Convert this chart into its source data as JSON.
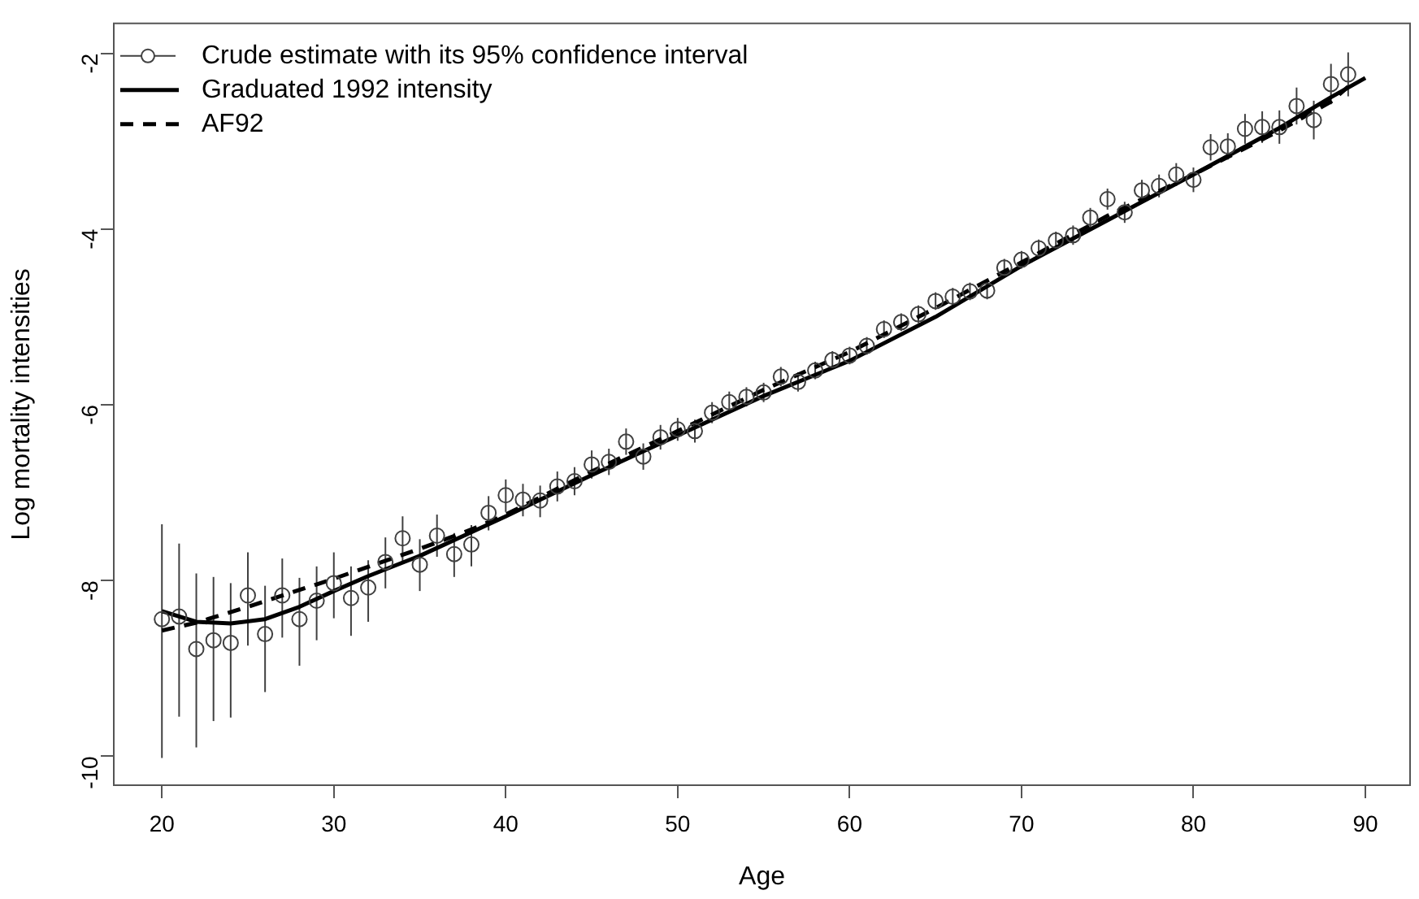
{
  "chart_data": {
    "type": "line",
    "xlabel": "Age",
    "ylabel": "Log mortality intensities",
    "xlim": [
      17.2,
      92.6
    ],
    "ylim": [
      -10.33,
      -1.66
    ],
    "xticks": [
      20,
      30,
      40,
      50,
      60,
      70,
      80,
      90
    ],
    "yticks": [
      -10,
      -8,
      -6,
      -4,
      -2
    ],
    "grid": false,
    "legend": "top left",
    "series": [
      {
        "name": "Crude estimate with its 95% confidence interval",
        "type": "scatter",
        "marker": "circle",
        "color": "#404040",
        "x": [
          20,
          21,
          22,
          23,
          24,
          25,
          26,
          27,
          28,
          29,
          30,
          31,
          32,
          33,
          34,
          35,
          36,
          37,
          38,
          39,
          40,
          41,
          42,
          43,
          44,
          45,
          46,
          47,
          48,
          49,
          50,
          51,
          52,
          53,
          54,
          55,
          56,
          57,
          58,
          59,
          60,
          61,
          62,
          63,
          64,
          65,
          66,
          67,
          68,
          69,
          70,
          71,
          72,
          73,
          74,
          75,
          76,
          77,
          78,
          79,
          80,
          81,
          82,
          83,
          84,
          85,
          86,
          87,
          88,
          89
        ],
        "values": [
          -8.44,
          -8.41,
          -8.78,
          -8.68,
          -8.71,
          -8.17,
          -8.61,
          -8.17,
          -8.44,
          -8.23,
          -8.03,
          -8.2,
          -8.08,
          -7.79,
          -7.52,
          -7.82,
          -7.49,
          -7.7,
          -7.59,
          -7.23,
          -7.03,
          -7.08,
          -7.09,
          -6.93,
          -6.87,
          -6.68,
          -6.65,
          -6.42,
          -6.59,
          -6.37,
          -6.28,
          -6.3,
          -6.09,
          -5.97,
          -5.91,
          -5.86,
          -5.68,
          -5.74,
          -5.61,
          -5.49,
          -5.44,
          -5.33,
          -5.14,
          -5.06,
          -4.97,
          -4.82,
          -4.77,
          -4.71,
          -4.7,
          -4.44,
          -4.35,
          -4.22,
          -4.13,
          -4.07,
          -3.87,
          -3.66,
          -3.81,
          -3.56,
          -3.51,
          -3.38,
          -3.44,
          -3.07,
          -3.06,
          -2.86,
          -2.84,
          -2.84,
          -2.6,
          -2.76,
          -2.35,
          -2.24
        ],
        "errors": [
          [
            -10.02,
            -7.36
          ],
          [
            -9.55,
            -7.58
          ],
          [
            -9.9,
            -7.92
          ],
          [
            -9.6,
            -7.96
          ],
          [
            -9.56,
            -8.03
          ],
          [
            -8.74,
            -7.68
          ],
          [
            -9.27,
            -8.06
          ],
          [
            -8.65,
            -7.75
          ],
          [
            -8.97,
            -7.97
          ],
          [
            -8.68,
            -7.84
          ],
          [
            -8.43,
            -7.68
          ],
          [
            -8.63,
            -7.84
          ],
          [
            -8.47,
            -7.77
          ],
          [
            -8.09,
            -7.51
          ],
          [
            -7.79,
            -7.27
          ],
          [
            -8.12,
            -7.53
          ],
          [
            -7.73,
            -7.25
          ],
          [
            -7.96,
            -7.46
          ],
          [
            -7.84,
            -7.37
          ],
          [
            -7.43,
            -7.04
          ],
          [
            -7.22,
            -6.85
          ],
          [
            -7.27,
            -6.9
          ],
          [
            -7.28,
            -6.92
          ],
          0.17,
          0.16,
          0.16,
          0.15,
          0.15,
          0.15,
          0.14,
          0.13,
          0.13,
          0.12,
          0.12,
          0.11,
          0.11,
          0.11,
          0.11,
          0.1,
          0.1,
          0.1,
          0.1,
          0.1,
          0.1,
          0.1,
          0.1,
          0.1,
          0.1,
          0.1,
          0.1,
          0.1,
          0.1,
          0.1,
          0.11,
          0.11,
          0.12,
          0.12,
          0.12,
          0.13,
          0.13,
          0.14,
          0.15,
          0.15,
          0.17,
          0.18,
          0.19,
          0.21,
          0.22,
          0.23,
          0.25
        ]
      },
      {
        "name": "Graduated 1992 intensity",
        "type": "line",
        "marker": "none",
        "line_style": "solid",
        "color": "#000000",
        "x": [
          20,
          22,
          24,
          26,
          28,
          30,
          32,
          35,
          38,
          40,
          42,
          45,
          50,
          55,
          60,
          65,
          70,
          75,
          80,
          85,
          88,
          90
        ],
        "values": [
          -8.35,
          -8.47,
          -8.49,
          -8.44,
          -8.3,
          -8.12,
          -7.95,
          -7.72,
          -7.45,
          -7.27,
          -7.08,
          -6.8,
          -6.35,
          -5.9,
          -5.5,
          -5.0,
          -4.42,
          -3.9,
          -3.38,
          -2.85,
          -2.5,
          -2.28
        ]
      },
      {
        "name": "AF92",
        "type": "line",
        "marker": "none",
        "line_style": "dashed",
        "color": "#000000",
        "x": [
          20,
          22,
          25,
          30,
          35,
          38,
          40,
          45,
          50,
          55,
          60,
          65,
          70,
          75,
          80,
          85,
          88,
          89
        ],
        "values": [
          -8.57,
          -8.48,
          -8.3,
          -7.98,
          -7.64,
          -7.42,
          -7.25,
          -6.76,
          -6.3,
          -5.83,
          -5.4,
          -4.9,
          -4.38,
          -3.85,
          -3.38,
          -2.88,
          -2.55,
          -2.38
        ]
      }
    ]
  }
}
